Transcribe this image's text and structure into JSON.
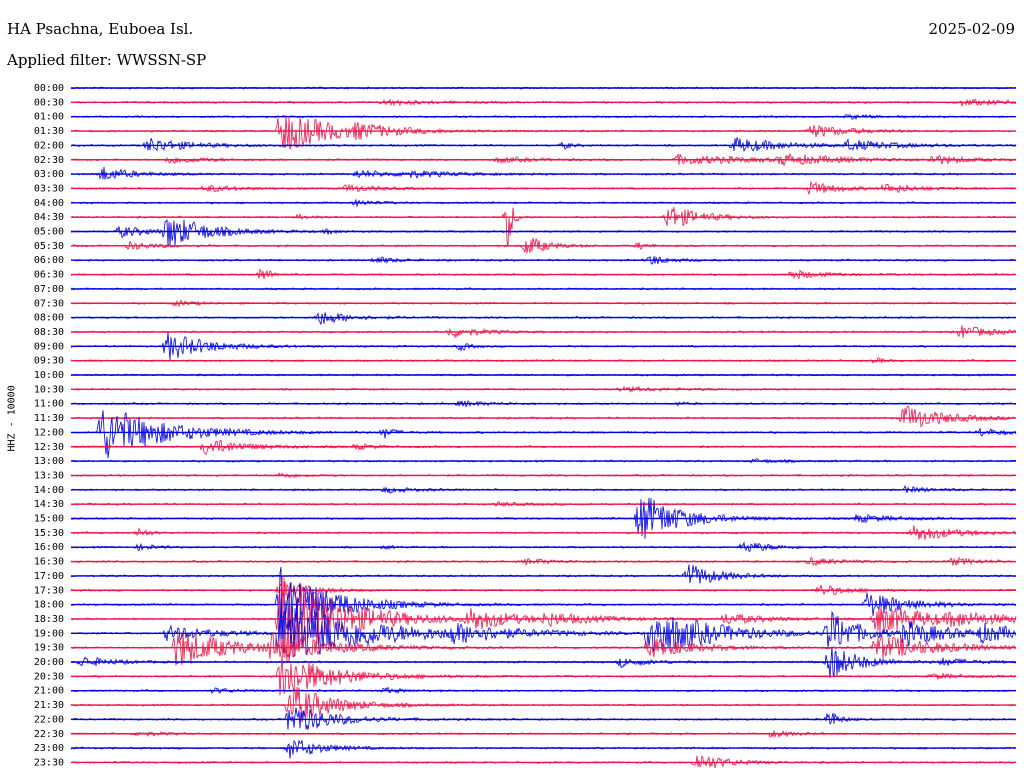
{
  "header": {
    "station": "HA Psachna, Euboea Isl.",
    "date": "2025-02-09",
    "filter_prefix": "Applied filter:",
    "filter_name": "WWSSN-SP"
  },
  "channel_label": "HHZ - 10000",
  "colors": {
    "even_row": "#0000e6",
    "odd_row": "#f0144a",
    "background": "#ffffff"
  },
  "chart_data": {
    "type": "helicorder",
    "row_interval_minutes": 30,
    "tick_labels": [
      "00:00",
      "00:30",
      "01:00",
      "01:30",
      "02:00",
      "02:30",
      "03:00",
      "03:30",
      "04:00",
      "04:30",
      "05:00",
      "05:30",
      "06:00",
      "06:30",
      "07:00",
      "07:30",
      "08:00",
      "08:30",
      "09:00",
      "09:30",
      "10:00",
      "10:30",
      "11:00",
      "11:30",
      "12:00",
      "12:30",
      "13:00",
      "13:30",
      "14:00",
      "14:30",
      "15:00",
      "15:30",
      "16:00",
      "16:30",
      "17:00",
      "17:30",
      "18:00",
      "18:30",
      "19:00",
      "19:30",
      "20:00",
      "20:30",
      "21:00",
      "21:30",
      "22:00",
      "22:30",
      "23:00",
      "23:30"
    ],
    "bursts": [
      {
        "row": 1,
        "t": 0.33,
        "a": 3,
        "d": 0.04
      },
      {
        "row": 1,
        "t": 0.94,
        "a": 3,
        "d": 0.06
      },
      {
        "row": 2,
        "t": 0.82,
        "a": 2,
        "d": 0.03
      },
      {
        "row": 3,
        "t": 0.22,
        "a": 24,
        "d": 0.05
      },
      {
        "row": 3,
        "t": 0.3,
        "a": 5,
        "d": 0.04
      },
      {
        "row": 3,
        "t": 0.78,
        "a": 7,
        "d": 0.04
      },
      {
        "row": 4,
        "t": 0.08,
        "a": 8,
        "d": 0.04
      },
      {
        "row": 4,
        "t": 0.52,
        "a": 4,
        "d": 0.01
      },
      {
        "row": 4,
        "t": 0.7,
        "a": 8,
        "d": 0.05
      },
      {
        "row": 4,
        "t": 0.82,
        "a": 5,
        "d": 0.05
      },
      {
        "row": 5,
        "t": 0.1,
        "a": 4,
        "d": 0.04
      },
      {
        "row": 5,
        "t": 0.45,
        "a": 3,
        "d": 0.04
      },
      {
        "row": 5,
        "t": 0.64,
        "a": 5,
        "d": 0.08
      },
      {
        "row": 5,
        "t": 0.75,
        "a": 5,
        "d": 0.06
      },
      {
        "row": 5,
        "t": 0.91,
        "a": 5,
        "d": 0.03
      },
      {
        "row": 6,
        "t": 0.03,
        "a": 8,
        "d": 0.03
      },
      {
        "row": 6,
        "t": 0.3,
        "a": 4,
        "d": 0.04
      },
      {
        "row": 6,
        "t": 0.35,
        "a": 3,
        "d": 0.05
      },
      {
        "row": 7,
        "t": 0.14,
        "a": 4,
        "d": 0.03
      },
      {
        "row": 7,
        "t": 0.29,
        "a": 4,
        "d": 0.03
      },
      {
        "row": 7,
        "t": 0.78,
        "a": 7,
        "d": 0.03
      },
      {
        "row": 7,
        "t": 0.86,
        "a": 5,
        "d": 0.03
      },
      {
        "row": 8,
        "t": 0.3,
        "a": 3,
        "d": 0.02
      },
      {
        "row": 9,
        "t": 0.24,
        "a": 3,
        "d": 0.01
      },
      {
        "row": 9,
        "t": 0.46,
        "a": 48,
        "d": 0.005
      },
      {
        "row": 9,
        "t": 0.63,
        "a": 14,
        "d": 0.03
      },
      {
        "row": 10,
        "t": 0.05,
        "a": 6,
        "d": 0.03
      },
      {
        "row": 10,
        "t": 0.1,
        "a": 18,
        "d": 0.04
      },
      {
        "row": 10,
        "t": 0.27,
        "a": 3,
        "d": 0.01
      },
      {
        "row": 11,
        "t": 0.06,
        "a": 4,
        "d": 0.03
      },
      {
        "row": 11,
        "t": 0.48,
        "a": 12,
        "d": 0.02
      },
      {
        "row": 11,
        "t": 0.6,
        "a": 4,
        "d": 0.01
      },
      {
        "row": 12,
        "t": 0.32,
        "a": 4,
        "d": 0.02
      },
      {
        "row": 12,
        "t": 0.61,
        "a": 6,
        "d": 0.02
      },
      {
        "row": 13,
        "t": 0.2,
        "a": 9,
        "d": 0.01
      },
      {
        "row": 13,
        "t": 0.76,
        "a": 5,
        "d": 0.03
      },
      {
        "row": 15,
        "t": 0.11,
        "a": 3,
        "d": 0.02
      },
      {
        "row": 16,
        "t": 0.26,
        "a": 8,
        "d": 0.03
      },
      {
        "row": 17,
        "t": 0.4,
        "a": 6,
        "d": 0.03
      },
      {
        "row": 17,
        "t": 0.94,
        "a": 7,
        "d": 0.03
      },
      {
        "row": 18,
        "t": 0.1,
        "a": 15,
        "d": 0.04
      },
      {
        "row": 18,
        "t": 0.41,
        "a": 5,
        "d": 0.01
      },
      {
        "row": 19,
        "t": 0.85,
        "a": 3,
        "d": 0.01
      },
      {
        "row": 21,
        "t": 0.58,
        "a": 2,
        "d": 0.06
      },
      {
        "row": 22,
        "t": 0.41,
        "a": 3,
        "d": 0.03
      },
      {
        "row": 22,
        "t": 0.64,
        "a": 2,
        "d": 0.01
      },
      {
        "row": 23,
        "t": 0.88,
        "a": 14,
        "d": 0.04
      },
      {
        "row": 24,
        "t": 0.03,
        "a": 30,
        "d": 0.06
      },
      {
        "row": 24,
        "t": 0.33,
        "a": 7,
        "d": 0.01
      },
      {
        "row": 24,
        "t": 0.96,
        "a": 4,
        "d": 0.03
      },
      {
        "row": 25,
        "t": 0.14,
        "a": 9,
        "d": 0.04
      },
      {
        "row": 25,
        "t": 0.3,
        "a": 3,
        "d": 0.02
      },
      {
        "row": 26,
        "t": 0.72,
        "a": 2,
        "d": 0.03
      },
      {
        "row": 27,
        "t": 0.22,
        "a": 3,
        "d": 0.02
      },
      {
        "row": 28,
        "t": 0.33,
        "a": 3,
        "d": 0.03
      },
      {
        "row": 28,
        "t": 0.88,
        "a": 3,
        "d": 0.03
      },
      {
        "row": 29,
        "t": 0.45,
        "a": 2,
        "d": 0.03
      },
      {
        "row": 30,
        "t": 0.6,
        "a": 28,
        "d": 0.04
      },
      {
        "row": 30,
        "t": 0.83,
        "a": 4,
        "d": 0.04
      },
      {
        "row": 31,
        "t": 0.07,
        "a": 6,
        "d": 0.01
      },
      {
        "row": 31,
        "t": 0.89,
        "a": 9,
        "d": 0.04
      },
      {
        "row": 32,
        "t": 0.07,
        "a": 3,
        "d": 0.02
      },
      {
        "row": 32,
        "t": 0.33,
        "a": 2,
        "d": 0.01
      },
      {
        "row": 32,
        "t": 0.71,
        "a": 6,
        "d": 0.03
      },
      {
        "row": 33,
        "t": 0.48,
        "a": 3,
        "d": 0.03
      },
      {
        "row": 33,
        "t": 0.78,
        "a": 4,
        "d": 0.03
      },
      {
        "row": 33,
        "t": 0.93,
        "a": 4,
        "d": 0.03
      },
      {
        "row": 34,
        "t": 0.65,
        "a": 14,
        "d": 0.03
      },
      {
        "row": 35,
        "t": 0.22,
        "a": 10,
        "d": 0.03
      },
      {
        "row": 35,
        "t": 0.79,
        "a": 6,
        "d": 0.03
      },
      {
        "row": 36,
        "t": 0.22,
        "a": 40,
        "d": 0.05
      },
      {
        "row": 36,
        "t": 0.84,
        "a": 14,
        "d": 0.04
      },
      {
        "row": 37,
        "t": 0.22,
        "a": 52,
        "d": 0.06
      },
      {
        "row": 37,
        "t": 0.42,
        "a": 12,
        "d": 0.04
      },
      {
        "row": 37,
        "t": 0.5,
        "a": 6,
        "d": 0.05
      },
      {
        "row": 37,
        "t": 0.69,
        "a": 6,
        "d": 0.04
      },
      {
        "row": 37,
        "t": 0.85,
        "a": 16,
        "d": 0.06
      },
      {
        "row": 37,
        "t": 0.93,
        "a": 5,
        "d": 0.06
      },
      {
        "row": 38,
        "t": 0.22,
        "a": 38,
        "d": 0.08
      },
      {
        "row": 38,
        "t": 0.4,
        "a": 8,
        "d": 0.06
      },
      {
        "row": 38,
        "t": 0.61,
        "a": 28,
        "d": 0.06
      },
      {
        "row": 38,
        "t": 0.8,
        "a": 24,
        "d": 0.03
      },
      {
        "row": 38,
        "t": 0.88,
        "a": 12,
        "d": 0.05
      },
      {
        "row": 38,
        "t": 0.1,
        "a": 8,
        "d": 0.05
      },
      {
        "row": 38,
        "t": 0.96,
        "a": 8,
        "d": 0.05
      },
      {
        "row": 39,
        "t": 0.11,
        "a": 22,
        "d": 0.05
      },
      {
        "row": 39,
        "t": 0.21,
        "a": 14,
        "d": 0.06
      },
      {
        "row": 39,
        "t": 0.61,
        "a": 10,
        "d": 0.05
      },
      {
        "row": 39,
        "t": 0.85,
        "a": 14,
        "d": 0.06
      },
      {
        "row": 40,
        "t": 0.01,
        "a": 6,
        "d": 0.03
      },
      {
        "row": 40,
        "t": 0.58,
        "a": 5,
        "d": 0.03
      },
      {
        "row": 40,
        "t": 0.8,
        "a": 20,
        "d": 0.03
      },
      {
        "row": 40,
        "t": 0.92,
        "a": 4,
        "d": 0.03
      },
      {
        "row": 41,
        "t": 0.22,
        "a": 26,
        "d": 0.05
      },
      {
        "row": 41,
        "t": 0.91,
        "a": 3,
        "d": 0.03
      },
      {
        "row": 42,
        "t": 0.15,
        "a": 3,
        "d": 0.02
      },
      {
        "row": 42,
        "t": 0.33,
        "a": 3,
        "d": 0.02
      },
      {
        "row": 43,
        "t": 0.23,
        "a": 24,
        "d": 0.04
      },
      {
        "row": 44,
        "t": 0.23,
        "a": 18,
        "d": 0.04
      },
      {
        "row": 44,
        "t": 0.8,
        "a": 12,
        "d": 0.01
      },
      {
        "row": 45,
        "t": 0.07,
        "a": 3,
        "d": 0.02
      },
      {
        "row": 45,
        "t": 0.74,
        "a": 4,
        "d": 0.02
      },
      {
        "row": 46,
        "t": 0.23,
        "a": 12,
        "d": 0.03
      },
      {
        "row": 47,
        "t": 0.66,
        "a": 10,
        "d": 0.03
      }
    ]
  }
}
